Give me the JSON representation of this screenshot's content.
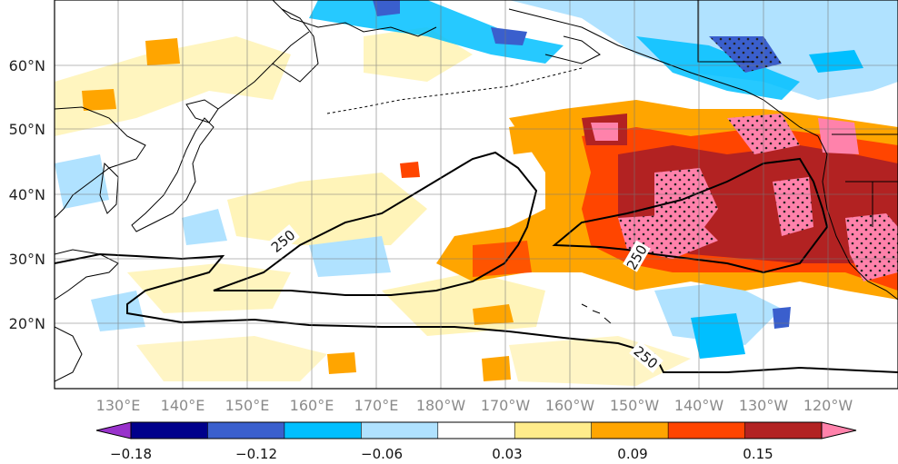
{
  "map": {
    "lat_labels": [
      "60°N",
      "50°N",
      "40°N",
      "30°N",
      "20°N"
    ],
    "lon_labels": [
      "130°E",
      "140°E",
      "150°E",
      "160°E",
      "170°E",
      "180°W",
      "170°W",
      "160°W",
      "150°W",
      "140°W",
      "130°W",
      "120°W"
    ],
    "contour_labels": [
      "250",
      "250",
      "250"
    ],
    "lon_range": [
      "120°E",
      "110°W"
    ],
    "lat_range": [
      "10°N",
      "70°N"
    ],
    "gridlines": true
  },
  "colorbar": {
    "tick_labels": [
      "−0.18",
      "−0.12",
      "−0.06",
      "0.03",
      "0.09",
      "0.15"
    ],
    "colors": [
      "#9932cc",
      "#00008b",
      "#3a5fcd",
      "#00bfff",
      "#b0e2ff",
      "#ffffff",
      "#ffec8b",
      "#ffa500",
      "#ff4500",
      "#b22222",
      "#ff82ab"
    ],
    "extend": "both"
  }
}
